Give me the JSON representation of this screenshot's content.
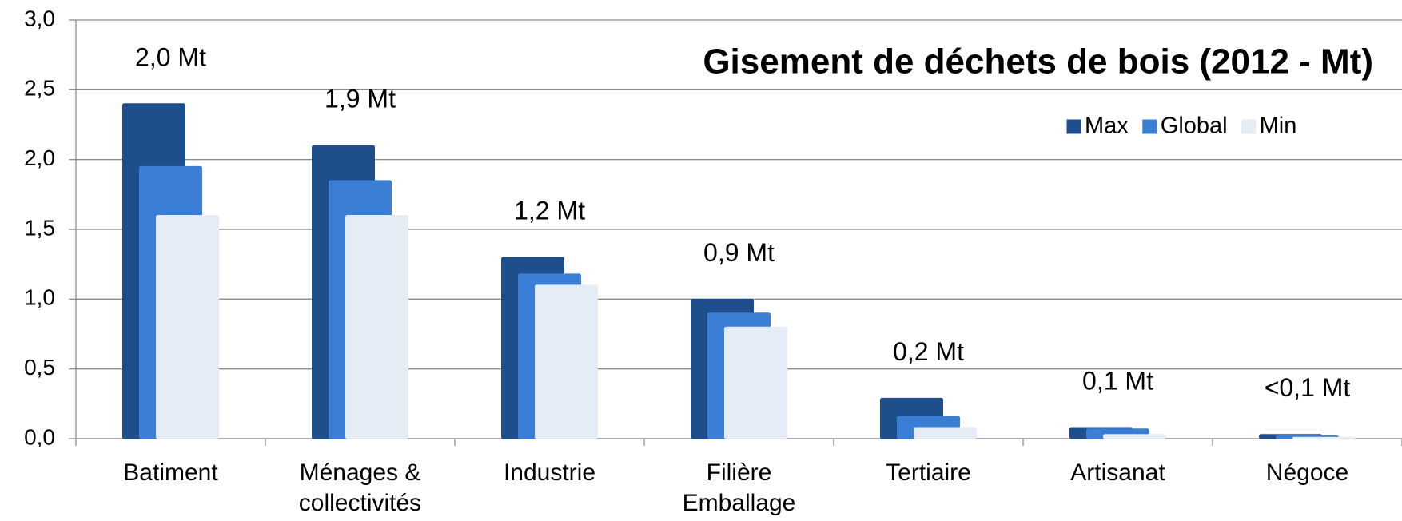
{
  "chart_data": {
    "type": "bar",
    "title": "Gisement de déchets de bois (2012 - Mt)",
    "categories": [
      "Batiment",
      "Ménages &\ncollectivités",
      "Industrie",
      "Filière\nEmballage",
      "Tertiaire",
      "Artisanat",
      "Négoce"
    ],
    "series": [
      {
        "name": "Max",
        "color": "#1f4e8c",
        "values": [
          2.4,
          2.1,
          1.3,
          1.0,
          0.29,
          0.08,
          0.03
        ]
      },
      {
        "name": "Global",
        "color": "#3a7fd5",
        "values": [
          1.95,
          1.85,
          1.18,
          0.9,
          0.16,
          0.07,
          0.02
        ],
        "value_labels": [
          "2,0 Mt",
          "1,9 Mt",
          "1,2 Mt",
          "0,9 Mt",
          "0,2 Mt",
          "0,1 Mt",
          "<0,1 Mt"
        ]
      },
      {
        "name": "Min",
        "color": "#e4ecf6",
        "values": [
          1.6,
          1.6,
          1.1,
          0.8,
          0.08,
          0.03,
          0.01
        ]
      }
    ],
    "ylim": [
      0,
      3
    ],
    "yticks": [
      {
        "value": 0,
        "label": "0,0"
      },
      {
        "value": 0.5,
        "label": "0,5"
      },
      {
        "value": 1,
        "label": "1,0"
      },
      {
        "value": 1.5,
        "label": "1,5"
      },
      {
        "value": 2,
        "label": "2,0"
      },
      {
        "value": 2.5,
        "label": "2,5"
      },
      {
        "value": 3,
        "label": "3,0"
      }
    ],
    "grid": true,
    "legend": "top-right"
  }
}
